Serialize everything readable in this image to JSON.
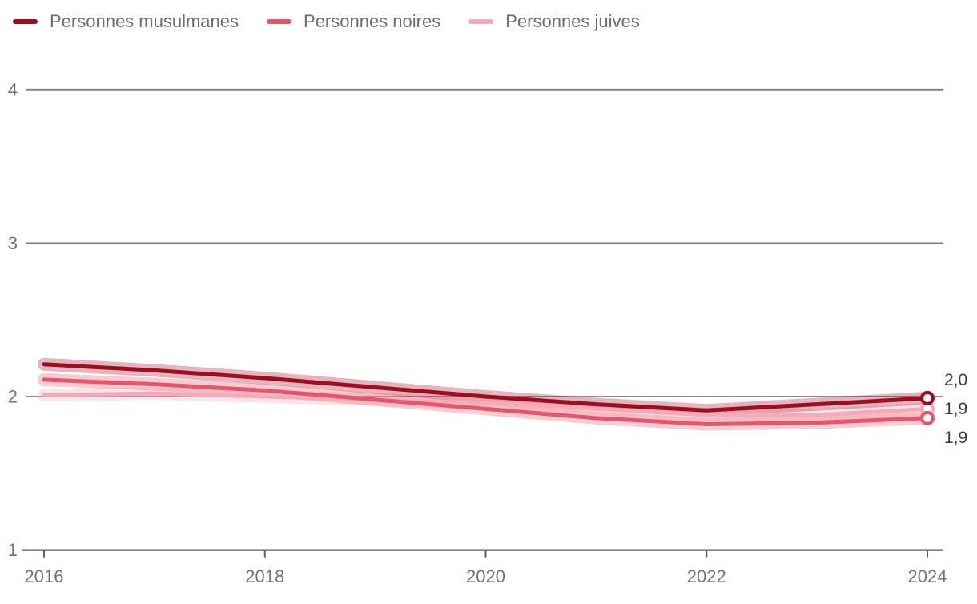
{
  "chart_data": {
    "type": "line",
    "x": [
      2016,
      2017,
      2018,
      2019,
      2020,
      2021,
      2022,
      2023,
      2024
    ],
    "series": [
      {
        "name": "Personnes musulmanes",
        "color": "#a00d20",
        "values": [
          2.21,
          2.17,
          2.12,
          2.06,
          2.0,
          1.95,
          1.91,
          1.95,
          1.99
        ],
        "end_label": "2,0"
      },
      {
        "name": "Personnes noires",
        "color": "#e4566b",
        "values": [
          2.11,
          2.08,
          2.04,
          1.98,
          1.92,
          1.86,
          1.82,
          1.83,
          1.86
        ],
        "end_label": "1,9"
      },
      {
        "name": "Personnes juives",
        "color": "#f4aab7",
        "values": [
          2.01,
          2.02,
          2.0,
          1.98,
          1.96,
          1.92,
          1.88,
          1.88,
          1.92
        ],
        "end_label": "1,9"
      }
    ],
    "title": "",
    "xlabel": "",
    "ylabel": "",
    "xticks": [
      2016,
      2018,
      2020,
      2022,
      2024
    ],
    "yticks": [
      1,
      2,
      3,
      4
    ],
    "ylim": [
      1,
      4
    ],
    "xlim": [
      2016,
      2024
    ],
    "grid": true,
    "legend_position": "top-left",
    "decimal_separator": ",",
    "styling": {
      "grid_color": "#7e7e7e",
      "baseline_color": "#5f5f5f",
      "axis_text_color": "#757575",
      "value_label_color": "#3a3a3a",
      "legend_text_color": "#6d6d6d",
      "halo_opacity": 0.3,
      "line_width": 5,
      "halo_width": 16,
      "marker_radius": 7,
      "marker_stroke": 4,
      "marker_fill": "#ffffff"
    }
  }
}
